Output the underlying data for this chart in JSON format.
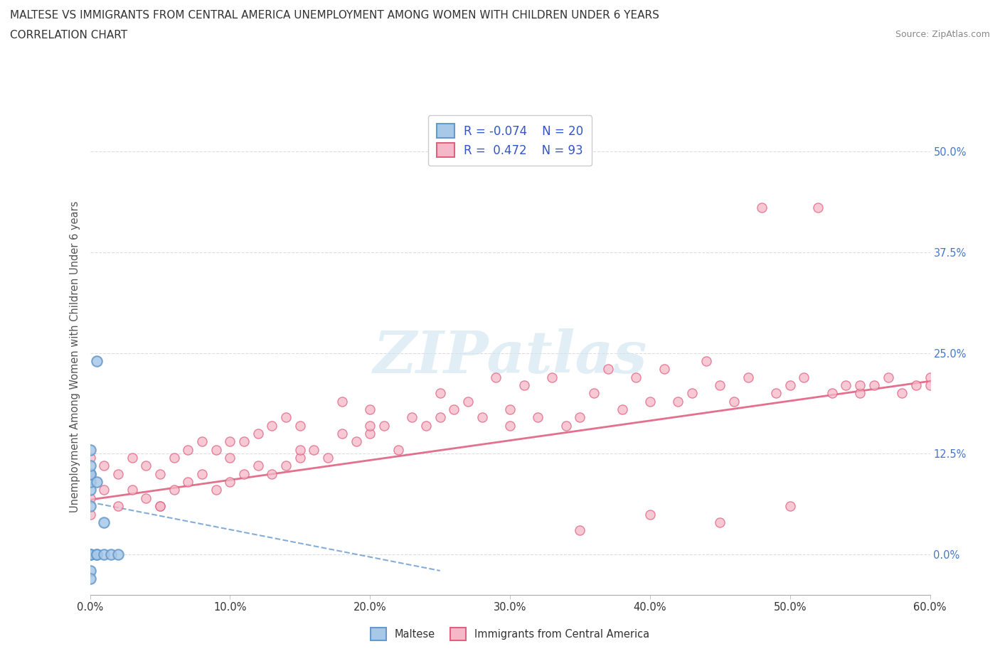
{
  "title_line1": "MALTESE VS IMMIGRANTS FROM CENTRAL AMERICA UNEMPLOYMENT AMONG WOMEN WITH CHILDREN UNDER 6 YEARS",
  "title_line2": "CORRELATION CHART",
  "source_text": "Source: ZipAtlas.com",
  "ylabel": "Unemployment Among Women with Children Under 6 years",
  "xlim": [
    0.0,
    0.6
  ],
  "ylim": [
    -0.05,
    0.54
  ],
  "background_color": "#ffffff",
  "grid_color": "#dddddd",
  "maltese_color": "#a8c8e8",
  "maltese_edge_color": "#6699cc",
  "maltese_line_color": "#88aadd",
  "immigrants_color": "#f5b8c8",
  "immigrants_edge_color": "#e06080",
  "immigrants_line_color": "#e06080",
  "watermark_color": "#d0e4f0",
  "right_tick_color": "#4477cc",
  "maltese_x": [
    0.0,
    0.0,
    0.0,
    0.0,
    0.0,
    0.0,
    0.0,
    0.0,
    0.0,
    0.0,
    0.005,
    0.005,
    0.005,
    0.005,
    0.01,
    0.01,
    0.015,
    0.02,
    0.0,
    0.0
  ],
  "maltese_y": [
    0.0,
    0.0,
    0.0,
    0.06,
    0.08,
    0.09,
    0.1,
    0.1,
    0.11,
    0.13,
    0.0,
    0.0,
    0.09,
    0.24,
    0.0,
    0.04,
    0.0,
    0.0,
    -0.02,
    -0.03
  ],
  "immigrants_x": [
    0.0,
    0.0,
    0.0,
    0.0,
    0.01,
    0.01,
    0.02,
    0.02,
    0.03,
    0.03,
    0.04,
    0.04,
    0.05,
    0.05,
    0.06,
    0.06,
    0.07,
    0.07,
    0.08,
    0.08,
    0.09,
    0.09,
    0.1,
    0.1,
    0.11,
    0.11,
    0.12,
    0.12,
    0.13,
    0.13,
    0.14,
    0.14,
    0.15,
    0.15,
    0.16,
    0.17,
    0.18,
    0.18,
    0.19,
    0.2,
    0.2,
    0.21,
    0.22,
    0.23,
    0.24,
    0.25,
    0.26,
    0.27,
    0.28,
    0.29,
    0.3,
    0.31,
    0.32,
    0.33,
    0.34,
    0.35,
    0.36,
    0.37,
    0.38,
    0.39,
    0.4,
    0.41,
    0.42,
    0.43,
    0.44,
    0.45,
    0.46,
    0.47,
    0.48,
    0.49,
    0.5,
    0.51,
    0.52,
    0.53,
    0.54,
    0.55,
    0.56,
    0.57,
    0.58,
    0.59,
    0.6,
    0.35,
    0.4,
    0.45,
    0.5,
    0.55,
    0.6,
    0.3,
    0.25,
    0.2,
    0.15,
    0.1,
    0.05
  ],
  "immigrants_y": [
    0.05,
    0.1,
    0.12,
    0.07,
    0.08,
    0.11,
    0.06,
    0.1,
    0.08,
    0.12,
    0.07,
    0.11,
    0.06,
    0.1,
    0.08,
    0.12,
    0.09,
    0.13,
    0.1,
    0.14,
    0.08,
    0.13,
    0.09,
    0.14,
    0.1,
    0.14,
    0.11,
    0.15,
    0.1,
    0.16,
    0.11,
    0.17,
    0.12,
    0.16,
    0.13,
    0.12,
    0.15,
    0.19,
    0.14,
    0.18,
    0.15,
    0.16,
    0.13,
    0.17,
    0.16,
    0.2,
    0.18,
    0.19,
    0.17,
    0.22,
    0.18,
    0.21,
    0.17,
    0.22,
    0.16,
    0.17,
    0.2,
    0.23,
    0.18,
    0.22,
    0.19,
    0.23,
    0.19,
    0.2,
    0.24,
    0.21,
    0.19,
    0.22,
    0.43,
    0.2,
    0.21,
    0.22,
    0.43,
    0.2,
    0.21,
    0.2,
    0.21,
    0.22,
    0.2,
    0.21,
    0.22,
    0.03,
    0.05,
    0.04,
    0.06,
    0.21,
    0.21,
    0.16,
    0.17,
    0.16,
    0.13,
    0.12,
    0.06
  ],
  "maltese_trendline_x": [
    0.0,
    0.25
  ],
  "maltese_trendline_y": [
    0.065,
    -0.02
  ],
  "immigrants_trendline_x": [
    0.0,
    0.6
  ],
  "immigrants_trendline_y": [
    0.068,
    0.215
  ]
}
